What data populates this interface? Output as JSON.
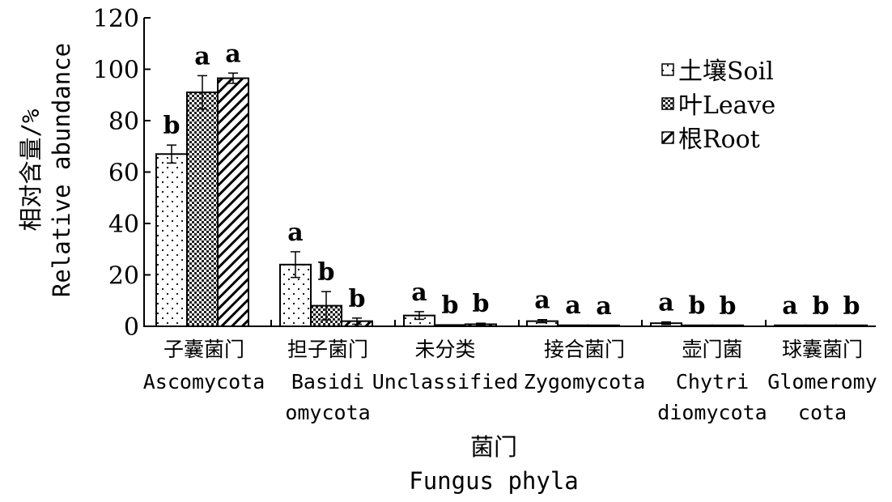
{
  "chart_data": {
    "type": "bar",
    "xlabel": "菌门",
    "xlabel_en": "Fungus phyla",
    "ylabel": "相对含量/%",
    "ylabel_en": "Relative abundance",
    "ylim": [
      0,
      120
    ],
    "yticks": [
      0,
      20,
      40,
      60,
      80,
      100,
      120
    ],
    "legend_position": "top-right",
    "categories": [
      {
        "zh": "子囊菌门",
        "en": [
          "Ascomycota"
        ]
      },
      {
        "zh": "担子菌门",
        "en": [
          "Basidi",
          "omycota"
        ]
      },
      {
        "zh": "未分类",
        "en": [
          "Unclassified"
        ]
      },
      {
        "zh": "接合菌门",
        "en": [
          "Zygomycota"
        ]
      },
      {
        "zh": "壶门菌",
        "en": [
          "Chytri",
          "diomycota"
        ]
      },
      {
        "zh": "球囊菌门",
        "en": [
          "Glomeromy",
          "cota"
        ]
      }
    ],
    "series": [
      {
        "name": "土壤Soil",
        "pattern": "dots",
        "values": [
          67,
          24,
          4.2,
          2,
          1.2,
          0.3
        ],
        "errors": [
          3.5,
          5,
          1.5,
          0.6,
          0.5,
          0.1
        ],
        "labels": [
          "b",
          "a",
          "a",
          "a",
          "a",
          "a"
        ]
      },
      {
        "name": "叶Leave",
        "pattern": "checker",
        "values": [
          91,
          8,
          0.5,
          0.4,
          0.3,
          0.1
        ],
        "errors": [
          6.5,
          5.5,
          0.2,
          0.2,
          0.1,
          0.05
        ],
        "labels": [
          "a",
          "b",
          "b",
          "a",
          "b",
          "b"
        ]
      },
      {
        "name": "根Root",
        "pattern": "hatch",
        "values": [
          96.5,
          2,
          0.8,
          0.1,
          0.1,
          0.05
        ],
        "errors": [
          2,
          1.2,
          0.4,
          0.05,
          0.05,
          0.02
        ],
        "labels": [
          "a",
          "b",
          "b",
          "a",
          "b",
          "b"
        ]
      }
    ]
  }
}
